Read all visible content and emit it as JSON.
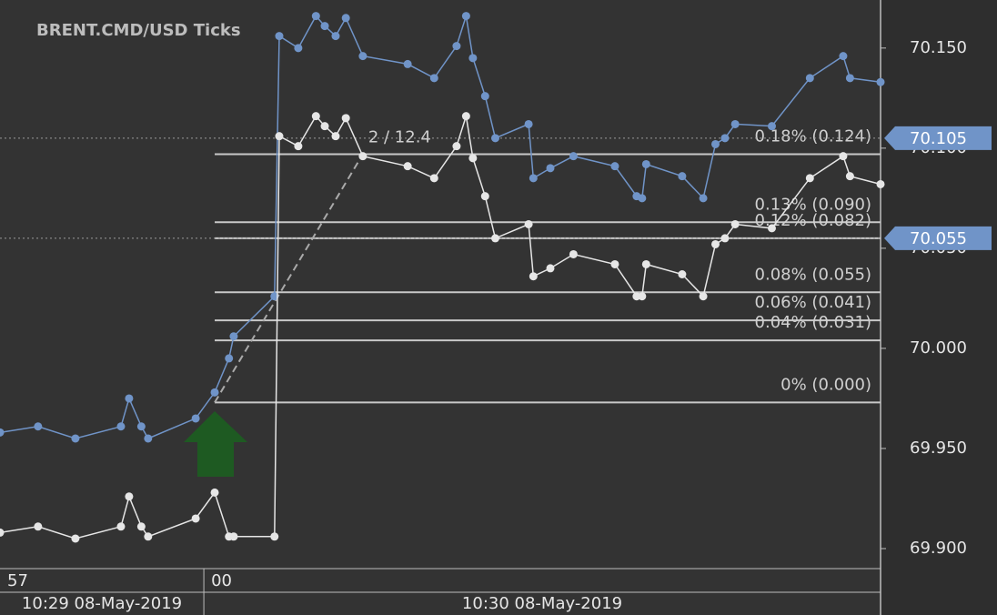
{
  "chart_data": {
    "type": "line",
    "title": "BRENT.CMD/USD  Ticks",
    "x": [
      0,
      0.56,
      1.11,
      1.78,
      1.9,
      2.08,
      2.18,
      2.88,
      3.16,
      3.37,
      3.44,
      4.04,
      4.11,
      4.39,
      4.65,
      4.78,
      4.94,
      5.09,
      5.34,
      6.0,
      6.39,
      6.72,
      6.86,
      6.96,
      7.14,
      7.29,
      7.78,
      7.85,
      8.1,
      8.44,
      9.05,
      9.37,
      9.45,
      9.51,
      10.04,
      10.35,
      10.53,
      10.67,
      10.82,
      11.36,
      11.92,
      12.41,
      12.51,
      12.96
    ],
    "series": [
      {
        "color": "#7094c8",
        "values": [
          69.958,
          69.961,
          69.955,
          69.961,
          69.975,
          69.961,
          69.955,
          69.965,
          69.978,
          69.995,
          70.006,
          70.026,
          70.156,
          70.15,
          70.166,
          70.161,
          70.156,
          70.165,
          70.146,
          70.142,
          70.135,
          70.151,
          70.166,
          70.145,
          70.126,
          70.105,
          70.112,
          70.085,
          70.09,
          70.096,
          70.091,
          70.076,
          70.075,
          70.092,
          70.086,
          70.075,
          70.102,
          70.105,
          70.112,
          70.111,
          70.135,
          70.146,
          70.135,
          70.133
        ]
      },
      {
        "color": "#e6e6e6",
        "values": [
          69.908,
          69.911,
          69.905,
          69.911,
          69.926,
          69.911,
          69.906,
          69.915,
          69.928,
          69.906,
          69.906,
          69.906,
          70.106,
          70.101,
          70.116,
          70.111,
          70.106,
          70.115,
          70.096,
          70.091,
          70.085,
          70.101,
          70.116,
          70.095,
          70.076,
          70.055,
          70.062,
          70.036,
          70.04,
          70.047,
          70.042,
          70.026,
          70.026,
          70.042,
          70.037,
          70.026,
          70.052,
          70.055,
          70.062,
          70.06,
          70.085,
          70.096,
          70.086,
          70.082
        ]
      }
    ],
    "xlim": [
      0,
      12.96
    ],
    "xticks": [
      {
        "value": 0,
        "label": "57"
      },
      {
        "value": 3,
        "label": "00"
      }
    ],
    "x_period_labels": [
      "10:29 08-May-2019",
      "10:30 08-May-2019"
    ],
    "ylim": [
      69.89,
      70.174
    ],
    "yticks": [
      {
        "value": 69.9,
        "label": "69.900"
      },
      {
        "value": 69.95,
        "label": "69.950"
      },
      {
        "value": 70.0,
        "label": "70.000"
      },
      {
        "value": 70.05,
        "label": "70.050"
      },
      {
        "value": 70.1,
        "label": "70.100"
      },
      {
        "value": 70.15,
        "label": "70.150"
      }
    ],
    "levels": [
      {
        "label": "0.18% (0.124)",
        "value": 70.097
      },
      {
        "label": "0.13% (0.090)",
        "value": 70.063
      },
      {
        "label": "0.12% (0.082)",
        "value": 70.055
      },
      {
        "label": "0.08% (0.055)",
        "value": 70.028
      },
      {
        "label": "0.06% (0.041)",
        "value": 70.014
      },
      {
        "label": "0.04% (0.031)",
        "value": 70.004
      },
      {
        "label": "0% (0.000)",
        "value": 69.973
      }
    ],
    "trend": {
      "label": "2 / 12.4",
      "x": [
        3.16,
        5.34
      ],
      "values": [
        69.973,
        70.097
      ]
    },
    "price_tags": [
      {
        "value": 70.105,
        "color": "#7094c8"
      },
      {
        "value": 70.055,
        "color": "#7094c8"
      }
    ]
  }
}
